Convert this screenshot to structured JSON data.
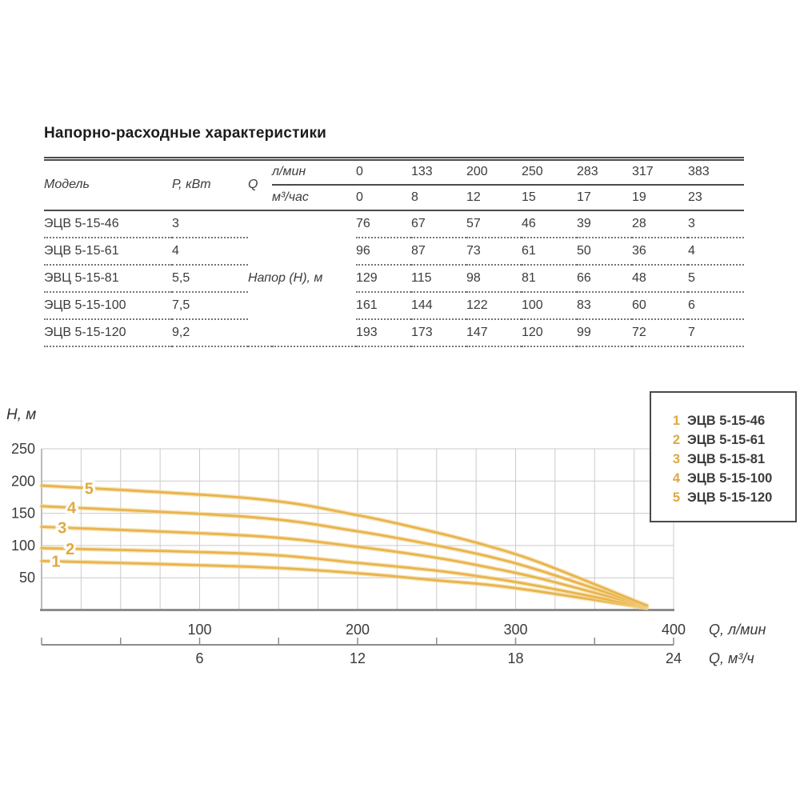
{
  "title": "Напорно-расходные характеристики",
  "table": {
    "col_model": "Модель",
    "col_power": "Р, кВт",
    "col_q": "Q",
    "unit_lmin": "л/мин",
    "unit_m3h": "м³/час",
    "napor_label": "Напор (Н), м",
    "q_lmin": [
      "0",
      "133",
      "200",
      "250",
      "283",
      "317",
      "383"
    ],
    "q_m3h": [
      "0",
      "8",
      "12",
      "15",
      "17",
      "19",
      "23"
    ],
    "rows": [
      {
        "model": "ЭЦВ 5-15-46",
        "power": "3",
        "values": [
          "76",
          "67",
          "57",
          "46",
          "39",
          "28",
          "3"
        ]
      },
      {
        "model": "ЭЦВ 5-15-61",
        "power": "4",
        "values": [
          "96",
          "87",
          "73",
          "61",
          "50",
          "36",
          "4"
        ]
      },
      {
        "model": "ЭВЦ 5-15-81",
        "power": "5,5",
        "values": [
          "129",
          "115",
          "98",
          "81",
          "66",
          "48",
          "5"
        ]
      },
      {
        "model": "ЭЦВ 5-15-100",
        "power": "7,5",
        "values": [
          "161",
          "144",
          "122",
          "100",
          "83",
          "60",
          "6"
        ]
      },
      {
        "model": "ЭЦВ 5-15-120",
        "power": "9,2",
        "values": [
          "193",
          "173",
          "147",
          "120",
          "99",
          "72",
          "7"
        ]
      }
    ]
  },
  "chart_data": {
    "type": "line",
    "title": "",
    "ylabel": "Н, м",
    "xlabel_primary": "Q, л/мин",
    "xlabel_secondary": "Q, м³/ч",
    "x": [
      0,
      133,
      200,
      250,
      283,
      317,
      383
    ],
    "series": [
      {
        "num": "1",
        "name": "ЭЦВ 5-15-46",
        "values": [
          76,
          67,
          57,
          46,
          39,
          28,
          3
        ]
      },
      {
        "num": "2",
        "name": "ЭЦВ 5-15-61",
        "values": [
          96,
          87,
          73,
          61,
          50,
          36,
          4
        ]
      },
      {
        "num": "3",
        "name": "ЭЦВ 5-15-81",
        "values": [
          129,
          115,
          98,
          81,
          66,
          48,
          5
        ]
      },
      {
        "num": "4",
        "name": "ЭЦВ 5-15-100",
        "values": [
          161,
          144,
          122,
          100,
          83,
          60,
          6
        ]
      },
      {
        "num": "5",
        "name": "ЭЦВ 5-15-120",
        "values": [
          193,
          173,
          147,
          120,
          99,
          72,
          7
        ]
      }
    ],
    "xlim": [
      0,
      400
    ],
    "ylim": [
      0,
      250
    ],
    "y_ticks": [
      50,
      100,
      150,
      200,
      250
    ],
    "x_ticks_lmin": [
      100,
      200,
      300,
      400
    ],
    "x_ticks_m3h": [
      6,
      12,
      18,
      24
    ],
    "grid": "on",
    "grid_step_x_lmin": 25,
    "grid_step_y": 50,
    "legend_position": "top-right",
    "colors": {
      "curve": "#E8B450",
      "curve_halo": "#F4D68D",
      "curve_label": "#DFA93F",
      "grid": "#cbcbcb",
      "axis": "#8c8c8c",
      "text": "#3a3a3a"
    }
  }
}
